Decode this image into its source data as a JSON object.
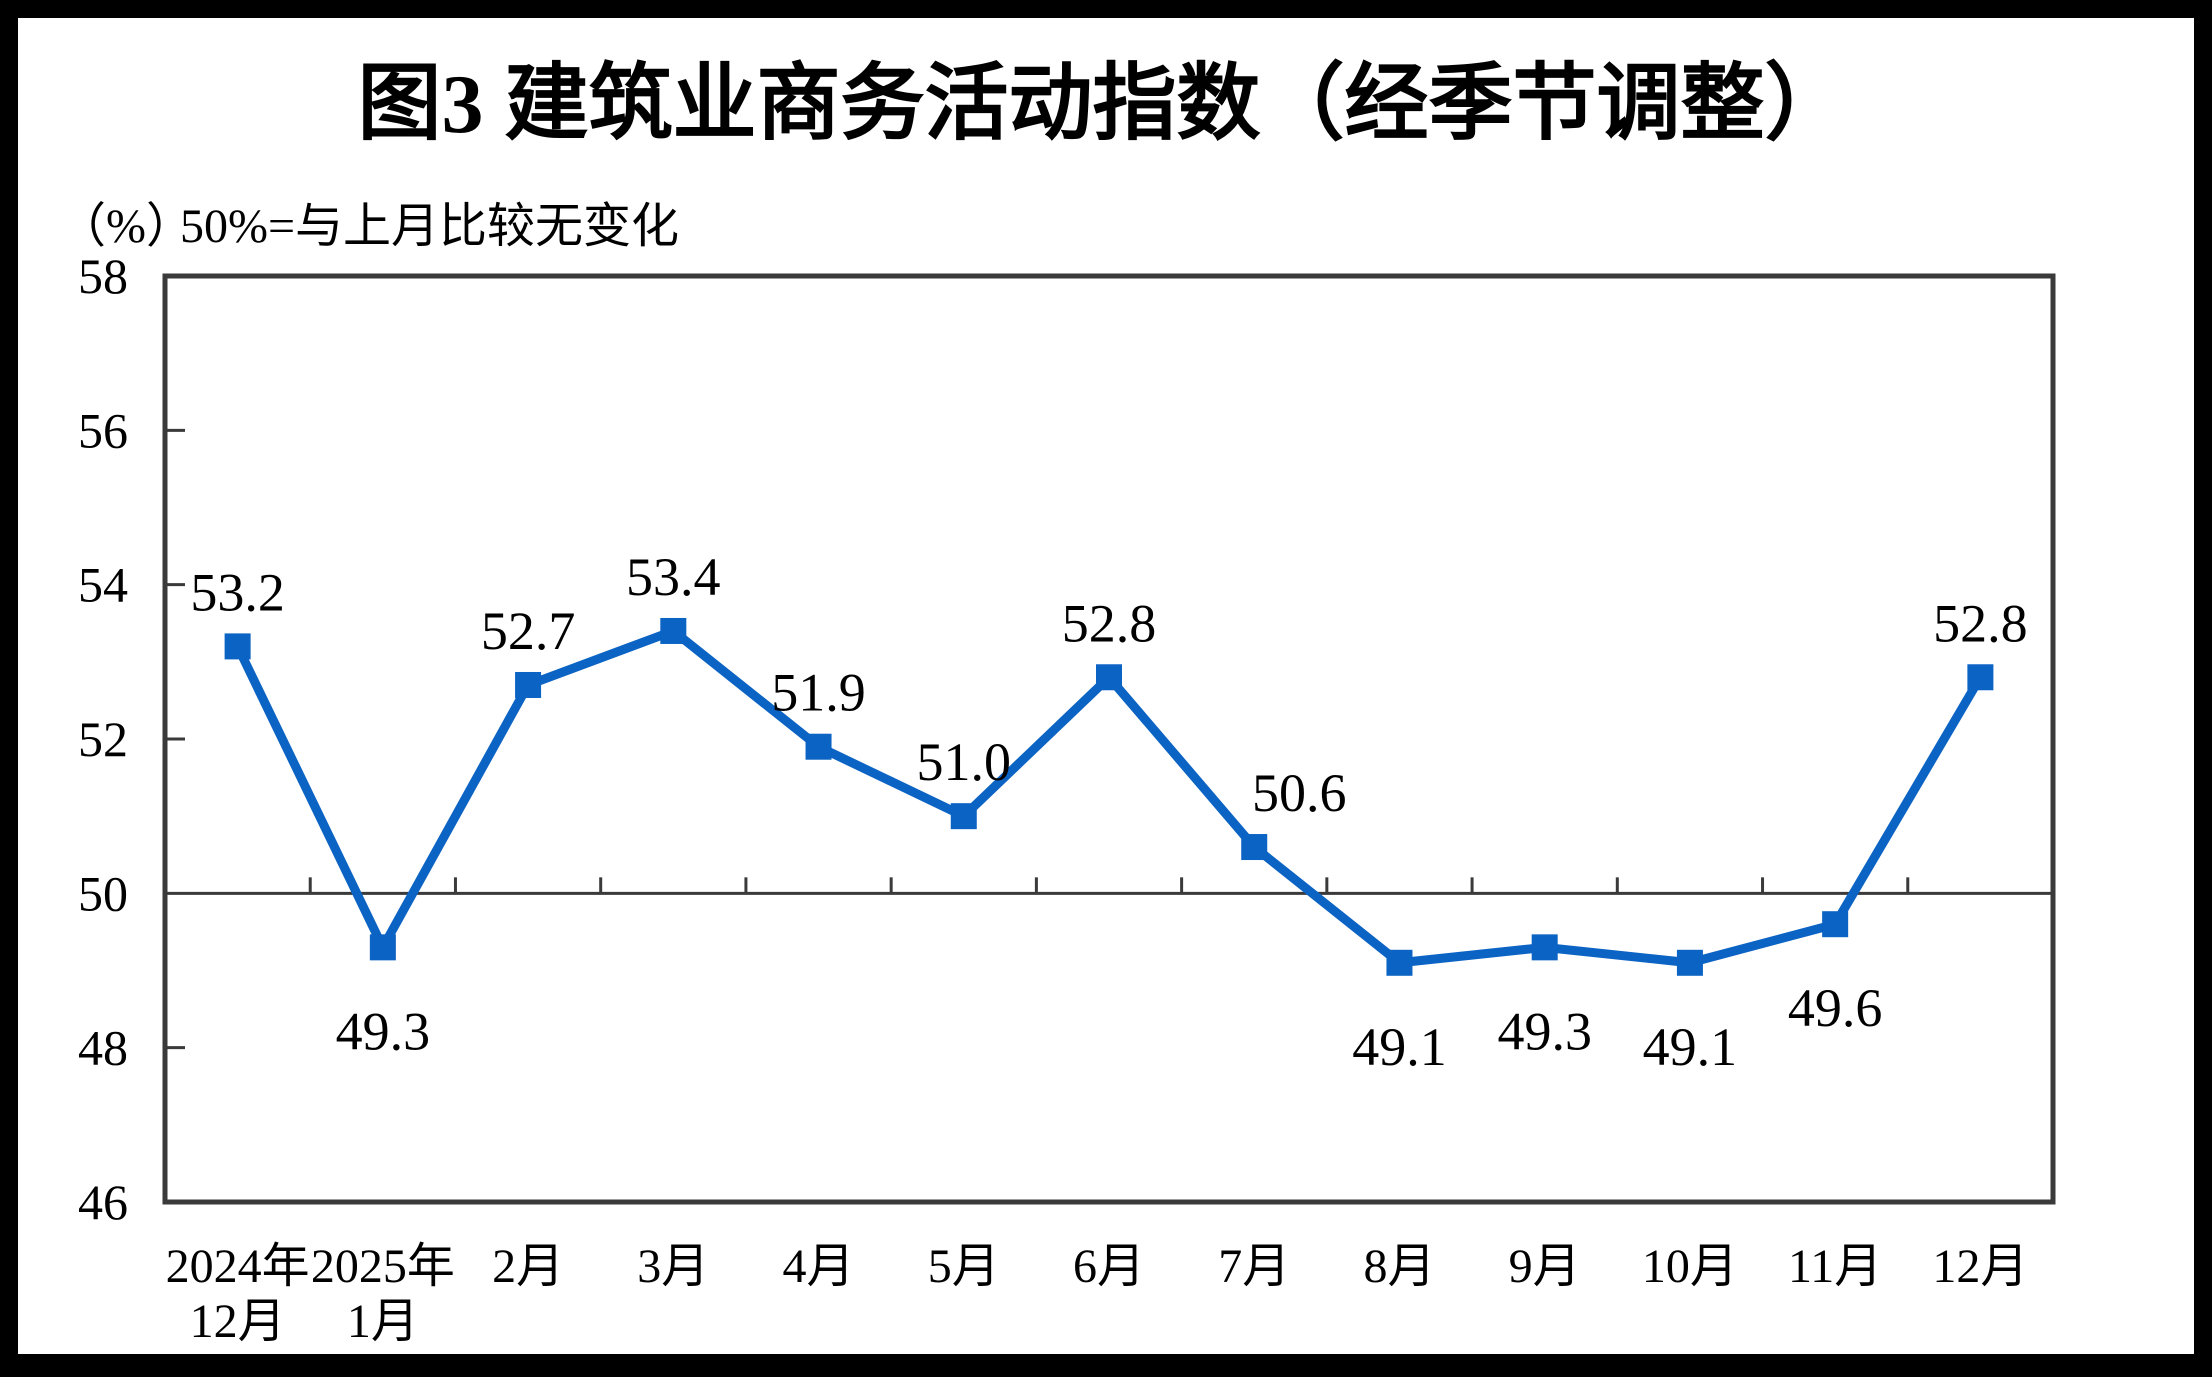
{
  "page": {
    "background": "#ffffff",
    "outer_border_color": "#000000"
  },
  "header": {
    "title": "图3  建筑业商务活动指数（经季节调整）",
    "unit_label": "（%）",
    "note": "50%=与上月比较无变化"
  },
  "chart_data": {
    "type": "line",
    "title": "图3  建筑业商务活动指数（经季节调整）",
    "unit": "（%）",
    "note": "50%=与上月比较无变化",
    "categories": [
      [
        "2024年",
        "12月"
      ],
      [
        "2025年",
        "1月"
      ],
      [
        "2月"
      ],
      [
        "3月"
      ],
      [
        "4月"
      ],
      [
        "5月"
      ],
      [
        "6月"
      ],
      [
        "7月"
      ],
      [
        "8月"
      ],
      [
        "9月"
      ],
      [
        "10月"
      ],
      [
        "11月"
      ],
      [
        "12月"
      ]
    ],
    "series": [
      {
        "name": "建筑业商务活动指数",
        "values": [
          53.2,
          49.3,
          52.7,
          53.4,
          51.9,
          51.0,
          52.8,
          50.6,
          49.1,
          49.3,
          49.1,
          49.6,
          52.8
        ]
      }
    ],
    "data_labels_shown": true,
    "yticks": [
      46,
      48,
      50,
      52,
      54,
      56,
      58
    ],
    "ylim": [
      46,
      58
    ],
    "reference_line": 50,
    "grid": "off",
    "legend": "none",
    "marker": "square",
    "label_side": [
      "above",
      "below",
      "above",
      "above",
      "above",
      "above",
      "above",
      "above",
      "below",
      "below",
      "below",
      "below",
      "above"
    ],
    "label_dx": [
      0,
      0,
      0,
      0,
      0,
      0,
      0,
      45,
      0,
      0,
      0,
      0,
      0
    ],
    "line_color": "#0b63c4",
    "axis_color": "#3a3a3a",
    "text_color": "#000000"
  }
}
